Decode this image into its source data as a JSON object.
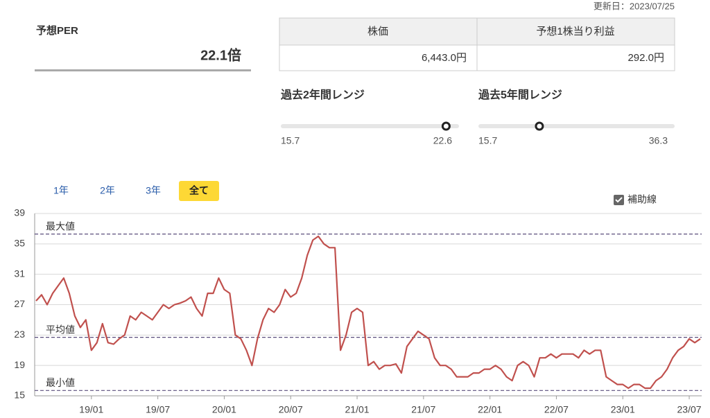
{
  "update_date": "更新日：2023/07/25",
  "per": {
    "label": "予想PER",
    "value": 22.1,
    "value_label": "22.1倍"
  },
  "table": {
    "headers": [
      "株価",
      "予想1株当り利益"
    ],
    "rows": [
      [
        "6,443.0円",
        "292.0円"
      ]
    ]
  },
  "ranges": [
    {
      "title": "過去2年間レンジ",
      "min": 15.7,
      "max": 22.6
    },
    {
      "title": "過去5年間レンジ",
      "min": 15.7,
      "max": 36.3
    }
  ],
  "tabs": [
    "1年",
    "2年",
    "3年",
    "全て"
  ],
  "active_tab": 3,
  "guide_toggle": {
    "label": "補助線",
    "checked": true
  },
  "chart_data": {
    "type": "line",
    "categories": [
      null,
      null,
      null,
      null,
      null,
      null,
      null,
      null,
      null,
      null,
      "19/01",
      null,
      null,
      null,
      null,
      null,
      null,
      null,
      null,
      null,
      null,
      null,
      "19/07",
      null,
      null,
      null,
      null,
      null,
      null,
      null,
      null,
      null,
      null,
      null,
      "20/01",
      null,
      null,
      null,
      null,
      null,
      null,
      null,
      null,
      null,
      null,
      null,
      "20/07",
      null,
      null,
      null,
      null,
      null,
      null,
      null,
      null,
      null,
      null,
      null,
      "21/01",
      null,
      null,
      null,
      null,
      null,
      null,
      null,
      null,
      null,
      null,
      null,
      "21/07",
      null,
      null,
      null,
      null,
      null,
      null,
      null,
      null,
      null,
      null,
      null,
      "22/01",
      null,
      null,
      null,
      null,
      null,
      null,
      null,
      null,
      null,
      null,
      null,
      "22/07",
      null,
      null,
      null,
      null,
      null,
      null,
      null,
      null,
      null,
      null,
      null,
      "23/01",
      null,
      null,
      null,
      null,
      null,
      null,
      null,
      null,
      null,
      null,
      null,
      "23/07",
      null,
      null
    ],
    "series": [
      {
        "color": "#c0504d",
        "values": [
          27.5,
          28.3,
          27,
          28.5,
          29.5,
          30.5,
          28.5,
          25.5,
          24,
          25,
          21,
          22,
          24.5,
          22,
          21.8,
          22.5,
          23,
          25.5,
          25,
          26,
          25.5,
          25,
          26,
          27,
          26.5,
          27,
          27.2,
          27.5,
          28,
          26.5,
          25.5,
          28.5,
          28.5,
          30.5,
          29,
          28.5,
          23,
          22.5,
          21,
          19,
          22.5,
          25,
          26.5,
          26,
          27,
          29,
          28,
          28.5,
          30.5,
          33.5,
          35.5,
          36,
          35,
          34.5,
          34.5,
          21,
          23,
          26,
          26.5,
          26,
          19,
          19.5,
          18.5,
          19,
          19,
          19.2,
          18,
          21.5,
          22.5,
          23.5,
          23,
          22.5,
          20,
          19,
          19,
          18.5,
          17.5,
          17.5,
          17.5,
          18,
          18,
          18.5,
          18.5,
          19,
          18.5,
          17.5,
          17,
          19,
          19.5,
          19,
          17.5,
          20,
          20,
          20.5,
          20,
          20.5,
          20.5,
          20.5,
          20,
          21,
          20.5,
          21,
          21,
          17.5,
          17,
          16.5,
          16.5,
          16,
          16.5,
          16.5,
          16,
          16,
          17,
          17.5,
          18.5,
          20,
          21,
          21.5,
          22.5,
          22,
          22.5
        ]
      }
    ],
    "ylim": [
      15,
      39
    ],
    "yticks": [
      15,
      19,
      23,
      27,
      31,
      35,
      39
    ],
    "grid": true,
    "reference_lines": [
      {
        "label": "最大値",
        "value": 36.3
      },
      {
        "label": "平均値",
        "value": 22.7
      },
      {
        "label": "最小値",
        "value": 15.7
      }
    ],
    "reference_color": "#5a4f7c"
  }
}
